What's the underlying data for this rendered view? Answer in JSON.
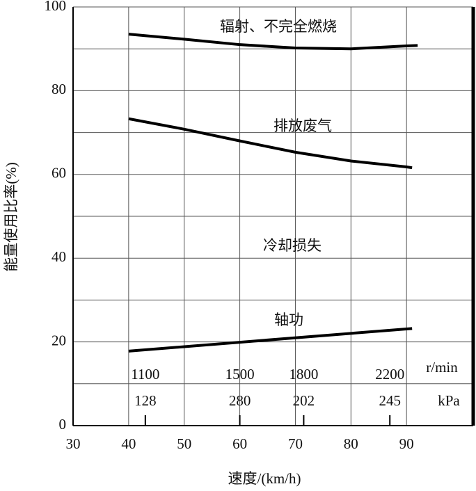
{
  "chart_data": {
    "type": "line",
    "xlabel": "速度/(km/h)",
    "ylabel": "能量使用比率(%)",
    "xlim": [
      30,
      102
    ],
    "ylim": [
      0,
      100
    ],
    "xticks": [
      30,
      40,
      50,
      60,
      70,
      80,
      90
    ],
    "yticks": [
      0,
      20,
      40,
      60,
      80,
      100
    ],
    "y_minor_grid": [
      10,
      30,
      50,
      70,
      90
    ],
    "grid": true,
    "series": [
      {
        "name": "辐射、不完全燃烧",
        "color": "#000000",
        "x": [
          40,
          50,
          60,
          70,
          80,
          90,
          92
        ],
        "values": [
          93.5,
          92.3,
          91,
          90.2,
          90,
          90.7,
          90.8
        ]
      },
      {
        "name": "排放废气",
        "color": "#000000",
        "x": [
          40,
          50,
          60,
          70,
          80,
          90,
          91
        ],
        "values": [
          73.3,
          70.8,
          68,
          65.3,
          63.2,
          61.8,
          61.6
        ]
      },
      {
        "name": "轴功",
        "color": "#000000",
        "x": [
          40,
          91
        ],
        "values": [
          17.8,
          23.2
        ]
      }
    ],
    "annotations": [
      "冷却损失"
    ],
    "engine_points": {
      "rpm_unit": "r/min",
      "pressure_unit": "kPa",
      "x": [
        43,
        60,
        71.5,
        87
      ],
      "rpm": [
        1100,
        1500,
        1800,
        2200
      ],
      "pressure": [
        128,
        280,
        202,
        245
      ]
    }
  }
}
